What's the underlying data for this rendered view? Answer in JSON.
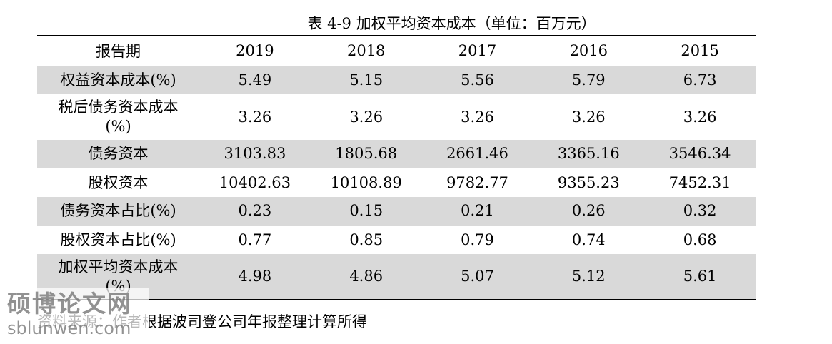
{
  "caption": "表 4-9  加权平均资本成本（单位：百万元）",
  "header": {
    "label": "报告期",
    "years": [
      "2019",
      "2018",
      "2017",
      "2016",
      "2015"
    ]
  },
  "rows": [
    {
      "label": "权益资本成本(%)",
      "values": [
        "5.49",
        "5.15",
        "5.56",
        "5.79",
        "6.73"
      ]
    },
    {
      "label": "税后债务资本成本\n(%)",
      "values": [
        "3.26",
        "3.26",
        "3.26",
        "3.26",
        "3.26"
      ]
    },
    {
      "label": "债务资本",
      "values": [
        "3103.83",
        "1805.68",
        "2661.46",
        "3365.16",
        "3546.34"
      ]
    },
    {
      "label": "股权资本",
      "values": [
        "10402.63",
        "10108.89",
        "9782.77",
        "9355.23",
        "7452.31"
      ]
    },
    {
      "label": "债务资本占比(%)",
      "values": [
        "0.23",
        "0.15",
        "0.21",
        "0.26",
        "0.32"
      ]
    },
    {
      "label": "股权资本占比(%)",
      "values": [
        "0.77",
        "0.85",
        "0.79",
        "0.74",
        "0.68"
      ]
    },
    {
      "label": "加权平均资本成本\n(%)",
      "values": [
        "4.98",
        "4.86",
        "5.07",
        "5.12",
        "5.61"
      ]
    }
  ],
  "source": "资料来源：作者根据波司登公司年报整理计算所得",
  "watermark": {
    "cn": "硕博论文网",
    "en": "sblunwen.com"
  }
}
